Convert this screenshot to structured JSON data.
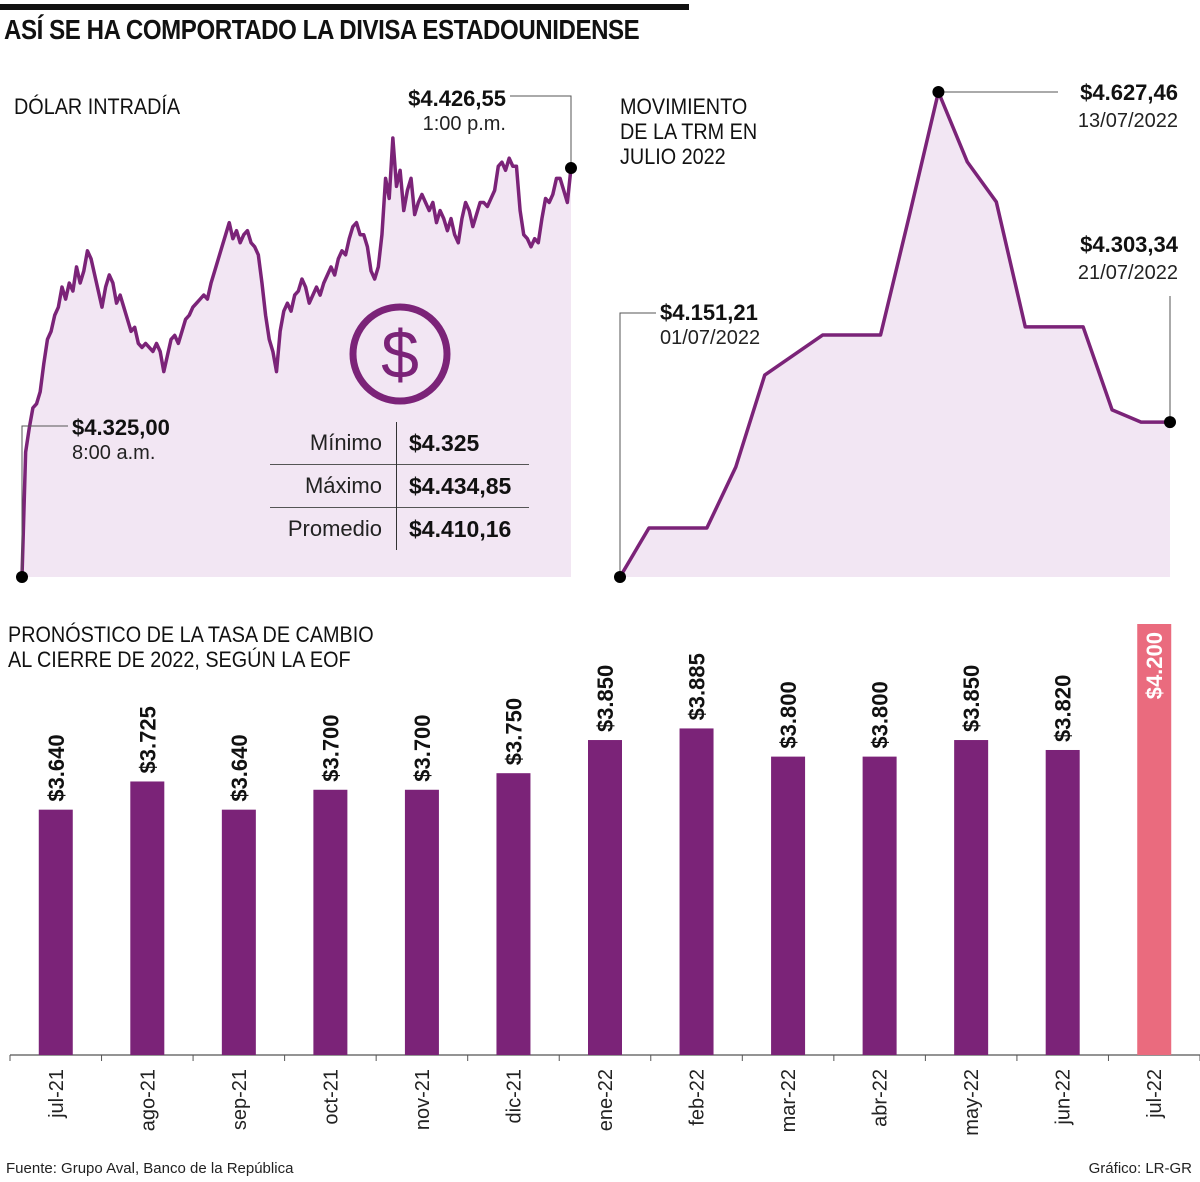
{
  "title": "ASÍ SE HA COMPORTADO LA DIVISA ESTADOUNIDENSE",
  "colors": {
    "line": "#7b2378",
    "area": "#f2e6f3",
    "bar": "#7b2378",
    "highlight_bar": "#ea6b7e",
    "marker": "#000000"
  },
  "footer": {
    "source": "Fuente: Grupo Aval, Banco de la República",
    "credit": "Gráfico: LR-GR"
  },
  "chart_data": [
    {
      "type": "area",
      "title": "DÓLAR INTRADÍA",
      "xlabel": "",
      "ylabel": "",
      "icon": "dollar-circle-icon",
      "annotations": [
        {
          "label": "$4.325,00",
          "sub": "8:00 a.m.",
          "value": 4325.0,
          "point": "start"
        },
        {
          "label": "$4.426,55",
          "sub": "1:00 p.m.",
          "value": 4426.55,
          "point": "end"
        }
      ],
      "stats": [
        {
          "label": "Mínimo",
          "value": "$4.325"
        },
        {
          "label": "Máximo",
          "value": "$4.434,85"
        },
        {
          "label": "Promedio",
          "value": "$4.410,16"
        }
      ],
      "ylim": [
        4325,
        4436
      ],
      "x_range": [
        "8:00 a.m.",
        "1:00 p.m."
      ],
      "values": [
        4325,
        4356,
        4362,
        4367,
        4368,
        4371,
        4378,
        4384,
        4386,
        4390,
        4392,
        4397,
        4394,
        4398,
        4396,
        4402,
        4398,
        4401,
        4406,
        4404,
        4400,
        4396,
        4392,
        4397,
        4400,
        4398,
        4393,
        4395,
        4392,
        4389,
        4386,
        4387,
        4383,
        4382,
        4383,
        4382,
        4381,
        4383,
        4381,
        4376,
        4380,
        4384,
        4385,
        4383,
        4386,
        4389,
        4390,
        4392,
        4393,
        4394,
        4395,
        4394,
        4398,
        4401,
        4404,
        4407,
        4410,
        4413,
        4409,
        4411,
        4408,
        4410,
        4411,
        4408,
        4407,
        4405,
        4398,
        4390,
        4384,
        4381,
        4376,
        4386,
        4391,
        4393,
        4391,
        4395,
        4396,
        4399,
        4397,
        4393,
        4395,
        4397,
        4395,
        4398,
        4400,
        4402,
        4400,
        4404,
        4406,
        4405,
        4409,
        4412,
        4413,
        4410,
        4410,
        4407,
        4401,
        4399,
        4402,
        4410,
        4424,
        4419,
        4434,
        4422,
        4426,
        4416,
        4421,
        4424,
        4415,
        4418,
        4420,
        4418,
        4416,
        4418,
        4413,
        4416,
        4414,
        4411,
        4414,
        4410,
        4408,
        4414,
        4418,
        4416,
        4412,
        4415,
        4418,
        4418,
        4417,
        4419,
        4421,
        4427,
        4428,
        4426,
        4429,
        4427,
        4427,
        4416,
        4410,
        4409,
        4407,
        4409,
        4408,
        4414,
        4419,
        4418,
        4420,
        4424,
        4424,
        4421,
        4418,
        4426.55
      ]
    },
    {
      "type": "area",
      "title": "MOVIMIENTO DE LA TRM EN JULIO 2022",
      "title_lines": [
        "MOVIMIENTO",
        "DE LA TRM EN",
        "JULIO 2022"
      ],
      "xlabel": "",
      "ylabel": "",
      "annotations": [
        {
          "label": "$4.151,21",
          "sub": "01/07/2022",
          "value": 4151.21,
          "point": "start"
        },
        {
          "label": "$4.627,46",
          "sub": "13/07/2022",
          "value": 4627.46,
          "point": "max"
        },
        {
          "label": "$4.303,34",
          "sub": "21/07/2022",
          "value": 4303.34,
          "point": "end"
        }
      ],
      "x_range": [
        "01/07/2022",
        "21/07/2022"
      ],
      "ylim": [
        4151.21,
        4627.46
      ],
      "values": [
        4151.21,
        4199.3,
        4199.3,
        4199.3,
        4259.2,
        4349.5,
        4369.2,
        4388.8,
        4388.8,
        4388.8,
        4506.6,
        4627.46,
        4558.7,
        4519.5,
        4396.8,
        4396.8,
        4396.8,
        4315.3,
        4303.34,
        4303.34
      ]
    },
    {
      "type": "bar",
      "title": "PRONÓSTICO DE LA TASA DE CAMBIO AL CIERRE DE 2022, SEGÚN LA EOF",
      "title_lines": [
        "PRONÓSTICO DE LA TASA DE CAMBIO",
        "AL CIERRE DE 2022, SEGÚN LA EOF"
      ],
      "xlabel": "",
      "ylabel": "",
      "categories": [
        "jul-21",
        "ago-21",
        "sep-21",
        "oct-21",
        "nov-21",
        "dic-21",
        "ene-22",
        "feb-22",
        "mar-22",
        "abr-22",
        "may-22",
        "jun-22",
        "jul-22"
      ],
      "values": [
        3640,
        3725,
        3640,
        3700,
        3700,
        3750,
        3850,
        3885,
        3800,
        3800,
        3850,
        3820,
        4200
      ],
      "labels": [
        "$3.640",
        "$3.725",
        "$3.640",
        "$3.700",
        "$3.700",
        "$3.750",
        "$3.850",
        "$3.885",
        "$3.800",
        "$3.800",
        "$3.850",
        "$3.820",
        "$4.200"
      ],
      "highlight": "jul-22",
      "ylim": [
        2900,
        4200
      ],
      "grid": false,
      "legend": "none"
    }
  ]
}
